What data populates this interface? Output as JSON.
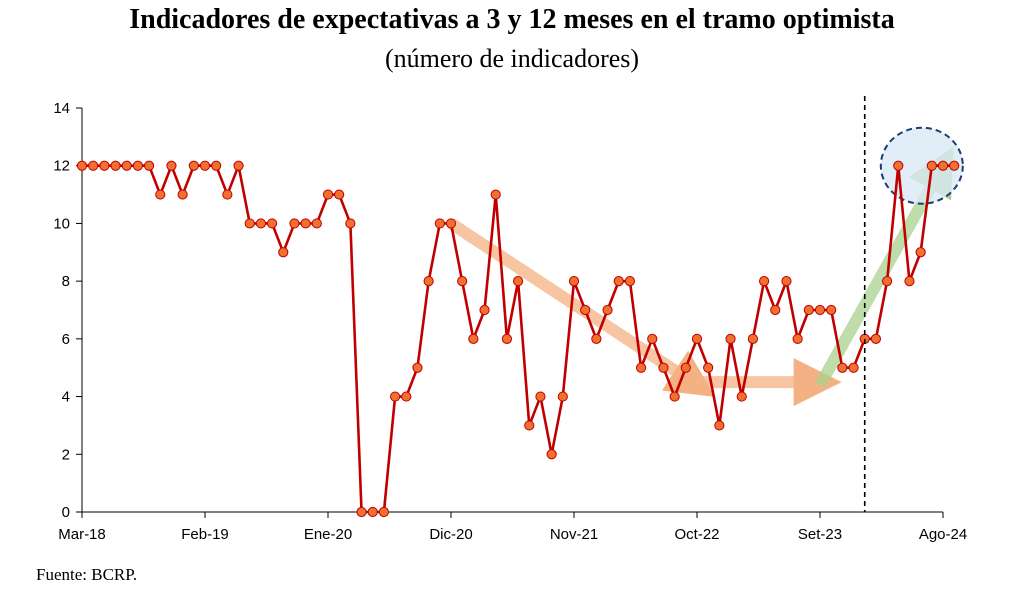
{
  "title": "Indicadores de expectativas a 3 y 12 meses en el tramo optimista",
  "subtitle": "(número de indicadores)",
  "source": "Fuente: BCRP.",
  "chart_data": {
    "type": "line",
    "ylim": [
      0,
      14
    ],
    "yticks": [
      0,
      2,
      4,
      6,
      8,
      10,
      12,
      14
    ],
    "xtick_labels": [
      "Mar-18",
      "Feb-19",
      "Ene-20",
      "Dic-20",
      "Nov-21",
      "Oct-22",
      "Set-23",
      "Ago-24"
    ],
    "start": "Mar-18",
    "end": "Ago-24",
    "series": [
      {
        "name": "",
        "color": "#c00000",
        "marker_color": "#f07030",
        "values": [
          12,
          12,
          12,
          12,
          12,
          12,
          12,
          11,
          12,
          11,
          12,
          12,
          12,
          11,
          12,
          10,
          10,
          10,
          9,
          10,
          10,
          10,
          11,
          11,
          10,
          0,
          0,
          0,
          4,
          4,
          5,
          8,
          10,
          10,
          8,
          6,
          7,
          11,
          6,
          8,
          3,
          4,
          2,
          4,
          8,
          7,
          6,
          7,
          8,
          8,
          5,
          6,
          5,
          4,
          5,
          6,
          5,
          3,
          6,
          4,
          6,
          8,
          7,
          8,
          6,
          7,
          7,
          7,
          5,
          5,
          6,
          6,
          8,
          12,
          8,
          9,
          12,
          12,
          12
        ]
      }
    ],
    "annotations": [
      {
        "type": "arrow",
        "color": "#f4b183",
        "from": [
          "Dic-20",
          10
        ],
        "to": [
          "Oct-22",
          4.4
        ]
      },
      {
        "type": "arrow",
        "color": "#f4b183",
        "from": [
          "Oct-22",
          4.5
        ],
        "to": [
          "Set-23",
          4.5
        ]
      },
      {
        "type": "arrow",
        "color": "#a9d18e",
        "from": [
          "Set-23",
          4.4
        ],
        "to": [
          "Ago-24",
          12
        ]
      },
      {
        "type": "vline",
        "x": "Ene-24",
        "style": "dashed"
      },
      {
        "type": "ellipse",
        "center": [
          "Jul-24",
          12
        ],
        "style": "dashed",
        "fill": "#dae8f5",
        "stroke": "#1f3b70"
      }
    ],
    "grid": false
  }
}
